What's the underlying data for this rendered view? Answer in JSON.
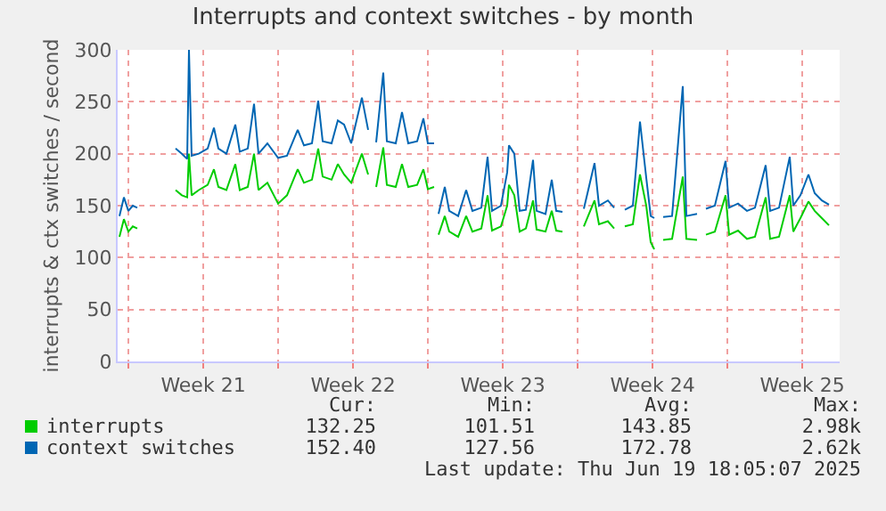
{
  "chart_data": {
    "type": "line",
    "title": "Interrupts and context switches - by month",
    "ylabel": "interrupts & ctx switches / second",
    "x": [
      "2025-05-17T14:00",
      "2025-05-17T19:00",
      "2025-05-18T00:00",
      "2025-05-18T05:00",
      "2025-05-18T10:00",
      "2025-05-19T07:00",
      "2025-05-20T05:00",
      "2025-05-20T12:00",
      "2025-05-20T18:00",
      "2025-05-20T20:00",
      "2025-05-20T23:00",
      "2025-05-21T07:00",
      "2025-05-21T17:00",
      "2025-05-22T00:00",
      "2025-05-22T05:00",
      "2025-05-22T14:00",
      "2025-05-23T00:00",
      "2025-05-23T05:00",
      "2025-05-23T14:00",
      "2025-05-23T21:00",
      "2025-05-24T02:00",
      "2025-05-24T12:00",
      "2025-05-25T00:00",
      "2025-05-25T10:00",
      "2025-05-25T22:00",
      "2025-05-26T05:00",
      "2025-05-26T14:00",
      "2025-05-26T21:00",
      "2025-05-27T02:00",
      "2025-05-27T12:00",
      "2025-05-27T19:00",
      "2025-05-28T02:00",
      "2025-05-28T10:00",
      "2025-05-28T22:00",
      "2025-05-29T05:00",
      "2025-05-29T10:00",
      "2025-05-29T14:00",
      "2025-05-29T22:00",
      "2025-05-30T02:00",
      "2025-05-30T12:00",
      "2025-05-30T19:00",
      "2025-05-31T02:00",
      "2025-05-31T12:00",
      "2025-05-31T19:00",
      "2025-06-01T00:00",
      "2025-06-01T07:00",
      "2025-06-01T10:00",
      "2025-06-01T12:00",
      "2025-06-01T19:00",
      "2025-06-02T00:00",
      "2025-06-02T10:00",
      "2025-06-02T19:00",
      "2025-06-03T02:00",
      "2025-06-03T12:00",
      "2025-06-03T19:00",
      "2025-06-04T00:00",
      "2025-06-04T10:00",
      "2025-06-04T17:00",
      "2025-06-04T19:00",
      "2025-06-05T01:00",
      "2025-06-05T07:00",
      "2025-06-05T14:00",
      "2025-06-05T22:00",
      "2025-06-06T02:00",
      "2025-06-06T12:00",
      "2025-06-06T19:00",
      "2025-06-07T00:00",
      "2025-06-07T07:00",
      "2025-06-07T19:00",
      "2025-06-08T07:00",
      "2025-06-08T19:00",
      "2025-06-09T00:00",
      "2025-06-09T10:00",
      "2025-06-09T17:00",
      "2025-06-09T22:00",
      "2025-06-10T05:00",
      "2025-06-10T14:00",
      "2025-06-10T22:00",
      "2025-06-11T05:00",
      "2025-06-11T10:00",
      "2025-06-11T14:00",
      "2025-06-11T19:00",
      "2025-06-12T00:00",
      "2025-06-12T10:00",
      "2025-06-12T22:00",
      "2025-06-13T02:00",
      "2025-06-13T14:00",
      "2025-06-13T19:00",
      "2025-06-14T00:00",
      "2025-06-14T10:00",
      "2025-06-14T22:00",
      "2025-06-15T02:00",
      "2025-06-15T12:00",
      "2025-06-15T22:00",
      "2025-06-16T07:00",
      "2025-06-16T19:00",
      "2025-06-17T00:00",
      "2025-06-17T10:00",
      "2025-06-17T22:00",
      "2025-06-18T02:00",
      "2025-06-18T10:00",
      "2025-06-18T19:00",
      "2025-06-19T02:00",
      "2025-06-19T10:00",
      "2025-06-19T18:00"
    ],
    "series": [
      {
        "name": "interrupts",
        "color": "#00cc00",
        "values": [
          120,
          137,
          125,
          130,
          128,
          null,
          165,
          160,
          158,
          200,
          160,
          165,
          170,
          185,
          168,
          165,
          190,
          165,
          168,
          200,
          165,
          172,
          152,
          160,
          185,
          172,
          175,
          205,
          178,
          175,
          190,
          180,
          172,
          200,
          180,
          null,
          168,
          206,
          170,
          168,
          190,
          168,
          170,
          185,
          166,
          168,
          null,
          122,
          140,
          125,
          120,
          140,
          125,
          128,
          160,
          126,
          130,
          150,
          170,
          160,
          125,
          128,
          155,
          127,
          125,
          145,
          126,
          125,
          null,
          130,
          155,
          132,
          135,
          128,
          null,
          130,
          132,
          180,
          150,
          115,
          108,
          null,
          117,
          118,
          178,
          118,
          117,
          null,
          122,
          125,
          160,
          122,
          126,
          118,
          120,
          158,
          118,
          120,
          160,
          125,
          138,
          154,
          145,
          138,
          131
        ]
      },
      {
        "name": "context switches",
        "color": "#0066b3",
        "values": [
          140,
          158,
          145,
          150,
          148,
          null,
          205,
          200,
          195,
          300,
          198,
          200,
          205,
          225,
          205,
          200,
          228,
          202,
          205,
          248,
          200,
          210,
          196,
          198,
          223,
          208,
          210,
          251,
          212,
          210,
          232,
          228,
          210,
          254,
          223,
          null,
          211,
          278,
          212,
          210,
          240,
          210,
          212,
          234,
          210,
          210,
          null,
          142,
          168,
          145,
          140,
          165,
          145,
          148,
          197,
          145,
          150,
          182,
          208,
          200,
          145,
          146,
          194,
          145,
          142,
          175,
          145,
          144,
          null,
          147,
          191,
          150,
          155,
          148,
          null,
          146,
          150,
          231,
          177,
          140,
          138,
          null,
          139,
          140,
          265,
          140,
          142,
          null,
          147,
          150,
          193,
          148,
          152,
          145,
          148,
          189,
          145,
          148,
          197,
          150,
          160,
          180,
          162,
          155,
          151
        ]
      }
    ],
    "xlim": [
      "2025-05-17T12:00",
      "2025-06-20T06:00"
    ],
    "xticks": [
      {
        "value": "2025-05-18",
        "label": null
      },
      {
        "value": "2025-05-21T12:00",
        "label": "Week 21"
      },
      {
        "value": "2025-05-25",
        "label": null
      },
      {
        "value": "2025-05-28T12:00",
        "label": "Week 22"
      },
      {
        "value": "2025-06-01",
        "label": null
      },
      {
        "value": "2025-06-04T12:00",
        "label": "Week 23"
      },
      {
        "value": "2025-06-08",
        "label": null
      },
      {
        "value": "2025-06-11T12:00",
        "label": "Week 24"
      },
      {
        "value": "2025-06-15",
        "label": null
      },
      {
        "value": "2025-06-18T12:00",
        "label": "Week 25"
      }
    ],
    "ylim": [
      0,
      300
    ],
    "yticks": [
      0,
      50,
      100,
      150,
      200,
      250,
      300
    ],
    "grid": true,
    "legend": "bottom left",
    "line_style": "solid",
    "annotations": [
      "Cur:",
      "Min:",
      "Avg:",
      "Max:",
      "132.25",
      "101.51",
      "143.85",
      "2.98k",
      "152.40",
      "127.56",
      "172.78",
      "2.62k",
      "Last update: Thu Jun 19 18:05:07 2025"
    ]
  }
}
